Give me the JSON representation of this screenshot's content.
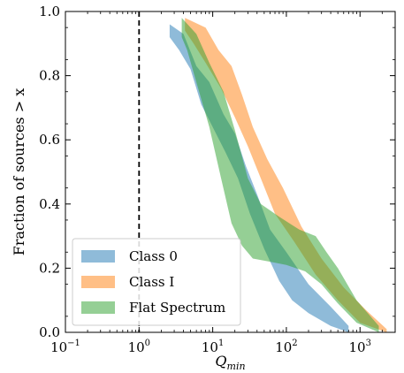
{
  "chart_data": {
    "type": "area",
    "xscale": "log",
    "xlim": [
      0.1,
      3000
    ],
    "ylim": [
      0.0,
      1.0
    ],
    "xlabel_base": "Q",
    "xlabel_sub": "min",
    "ylabel": "Fraction of sources > x",
    "x_ticks": [
      {
        "value": 0.1,
        "base": "10",
        "exp": "−1"
      },
      {
        "value": 1,
        "base": "10",
        "exp": "0"
      },
      {
        "value": 10,
        "base": "10",
        "exp": "1"
      },
      {
        "value": 100,
        "base": "10",
        "exp": "2"
      },
      {
        "value": 1000,
        "base": "10",
        "exp": "3"
      }
    ],
    "y_ticks": [
      {
        "value": 0.0,
        "label": "0.0"
      },
      {
        "value": 0.2,
        "label": "0.2"
      },
      {
        "value": 0.4,
        "label": "0.4"
      },
      {
        "value": 0.6,
        "label": "0.6"
      },
      {
        "value": 0.8,
        "label": "0.8"
      },
      {
        "value": 1.0,
        "label": "1.0"
      }
    ],
    "reference_line": {
      "x": 1,
      "style": "dashed"
    },
    "legend_position": "bottom-left",
    "grid": false,
    "series": [
      {
        "name": "Class 0",
        "color": "#1f77b4",
        "upper": [
          [
            2.6,
            0.96
          ],
          [
            4.0,
            0.93
          ],
          [
            6,
            0.83
          ],
          [
            9,
            0.78
          ],
          [
            14,
            0.68
          ],
          [
            20,
            0.62
          ],
          [
            28,
            0.52
          ],
          [
            40,
            0.43
          ],
          [
            60,
            0.32
          ],
          [
            100,
            0.25
          ],
          [
            200,
            0.15
          ],
          [
            400,
            0.08
          ],
          [
            700,
            0.02
          ]
        ],
        "lower": [
          [
            700,
            0.0
          ],
          [
            400,
            0.02
          ],
          [
            200,
            0.06
          ],
          [
            120,
            0.1
          ],
          [
            80,
            0.16
          ],
          [
            50,
            0.26
          ],
          [
            32,
            0.37
          ],
          [
            22,
            0.48
          ],
          [
            15,
            0.56
          ],
          [
            10,
            0.64
          ],
          [
            7,
            0.71
          ],
          [
            5,
            0.82
          ],
          [
            3.5,
            0.88
          ],
          [
            2.6,
            0.92
          ]
        ]
      },
      {
        "name": "Class I",
        "color": "#ff7f0e",
        "upper": [
          [
            4.2,
            0.98
          ],
          [
            8,
            0.95
          ],
          [
            12,
            0.88
          ],
          [
            18,
            0.83
          ],
          [
            25,
            0.74
          ],
          [
            35,
            0.64
          ],
          [
            55,
            0.54
          ],
          [
            90,
            0.45
          ],
          [
            160,
            0.33
          ],
          [
            300,
            0.23
          ],
          [
            600,
            0.14
          ],
          [
            1200,
            0.07
          ],
          [
            2300,
            0.01
          ]
        ],
        "lower": [
          [
            2300,
            0.0
          ],
          [
            1000,
            0.03
          ],
          [
            500,
            0.1
          ],
          [
            250,
            0.18
          ],
          [
            130,
            0.28
          ],
          [
            70,
            0.37
          ],
          [
            45,
            0.48
          ],
          [
            30,
            0.58
          ],
          [
            20,
            0.67
          ],
          [
            13,
            0.76
          ],
          [
            8,
            0.84
          ],
          [
            5.5,
            0.9
          ],
          [
            4.2,
            0.94
          ]
        ]
      },
      {
        "name": "Flat Spectrum",
        "color": "#2ca02c",
        "upper": [
          [
            3.8,
            0.98
          ],
          [
            6,
            0.93
          ],
          [
            9,
            0.84
          ],
          [
            14,
            0.75
          ],
          [
            20,
            0.63
          ],
          [
            30,
            0.48
          ],
          [
            45,
            0.4
          ],
          [
            80,
            0.36
          ],
          [
            150,
            0.32
          ],
          [
            250,
            0.3
          ],
          [
            350,
            0.25
          ],
          [
            500,
            0.2
          ],
          [
            900,
            0.1
          ],
          [
            1800,
            0.02
          ]
        ],
        "lower": [
          [
            1800,
            0.0
          ],
          [
            900,
            0.03
          ],
          [
            500,
            0.09
          ],
          [
            300,
            0.15
          ],
          [
            180,
            0.19
          ],
          [
            100,
            0.21
          ],
          [
            60,
            0.22
          ],
          [
            35,
            0.23
          ],
          [
            25,
            0.27
          ],
          [
            18,
            0.34
          ],
          [
            13,
            0.48
          ],
          [
            9,
            0.64
          ],
          [
            6,
            0.78
          ],
          [
            4.5,
            0.88
          ],
          [
            3.8,
            0.92
          ]
        ]
      }
    ]
  }
}
